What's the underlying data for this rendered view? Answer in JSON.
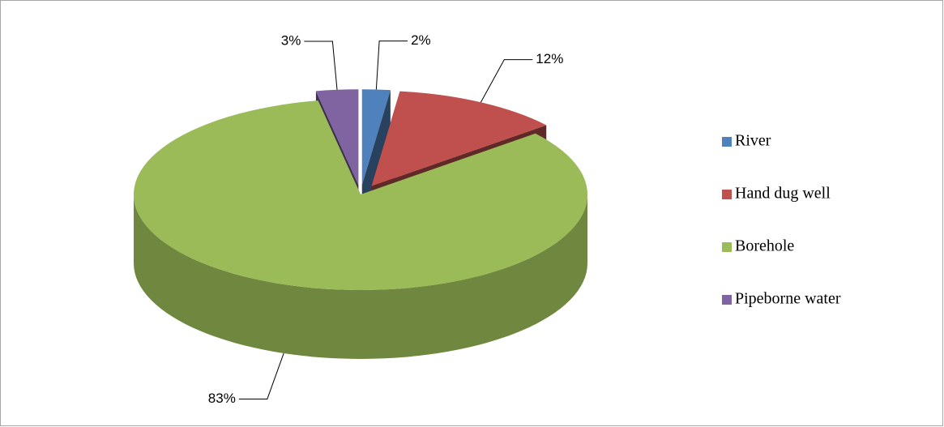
{
  "chart_data": {
    "type": "pie",
    "categories": [
      "River",
      "Hand dug well",
      "Borehole",
      "Pipeborne water"
    ],
    "values": [
      2,
      12,
      83,
      3
    ],
    "value_labels": [
      "2%",
      "12%",
      "83%",
      "3%"
    ],
    "colors": [
      "#4f81bd",
      "#c0504d",
      "#9bbb59",
      "#8064a2"
    ],
    "exploded": [
      true,
      true,
      false,
      true
    ],
    "legend": "right"
  }
}
